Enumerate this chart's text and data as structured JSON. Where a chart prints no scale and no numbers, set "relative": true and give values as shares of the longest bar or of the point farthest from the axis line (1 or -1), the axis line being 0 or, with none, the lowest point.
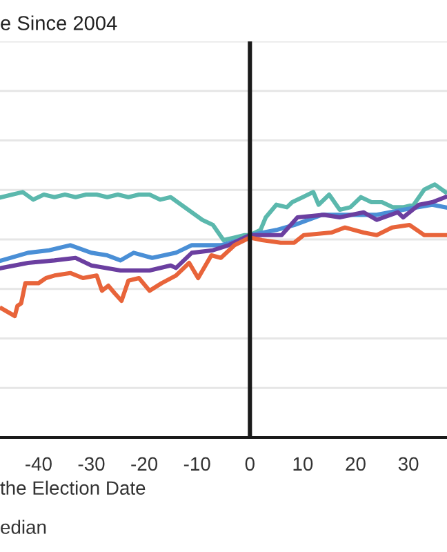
{
  "chart_data": {
    "type": "line",
    "title": "e Since 2004",
    "xlabel": "the Election Date",
    "annotations": [
      "edian"
    ],
    "relative": true,
    "grid": "y",
    "legend": false,
    "marker": "none",
    "line_style": "solid",
    "xlim": [
      -47.3,
      37.3
    ],
    "xticks": [
      -40,
      -30,
      -20,
      -10,
      0,
      10,
      20,
      30
    ],
    "ref_lines": [
      {
        "axis": "x",
        "value": 0,
        "color": "#1a1a1a"
      }
    ],
    "series": [
      {
        "color": "#5bb8ad",
        "x": [
          -47,
          -45,
          -43,
          -41,
          -39,
          -37,
          -35,
          -33,
          -31,
          -29,
          -27,
          -25,
          -23,
          -21,
          -19,
          -17,
          -15,
          -13,
          -11,
          -9,
          -7,
          -5,
          -3,
          -1,
          0,
          2,
          3,
          5,
          7,
          8,
          10,
          12,
          13,
          15,
          17,
          19,
          21,
          23,
          25,
          27,
          29,
          31,
          33,
          35,
          37
        ],
        "values": [
          0.95,
          0.96,
          0.97,
          0.94,
          0.96,
          0.95,
          0.96,
          0.95,
          0.96,
          0.96,
          0.95,
          0.96,
          0.95,
          0.96,
          0.96,
          0.94,
          0.95,
          0.92,
          0.89,
          0.86,
          0.84,
          0.78,
          0.79,
          0.8,
          0.8,
          0.82,
          0.87,
          0.92,
          0.91,
          0.93,
          0.95,
          0.97,
          0.92,
          0.96,
          0.9,
          0.91,
          0.95,
          0.93,
          0.93,
          0.91,
          0.91,
          0.92,
          0.98,
          1.0,
          0.97
        ]
      },
      {
        "color": "#4a8fd6",
        "x": [
          -47,
          -42,
          -38,
          -34,
          -30,
          -27,
          -24.5,
          -22,
          -18.5,
          -14,
          -11,
          -5.5,
          -2,
          0,
          5,
          8.4,
          13.6,
          19,
          24,
          29,
          34.5,
          37
        ],
        "values": [
          0.7,
          0.73,
          0.74,
          0.76,
          0.73,
          0.72,
          0.7,
          0.73,
          0.71,
          0.73,
          0.76,
          0.76,
          0.78,
          0.8,
          0.82,
          0.84,
          0.88,
          0.88,
          0.88,
          0.9,
          0.92,
          0.91
        ]
      },
      {
        "color": "#6b3fa0",
        "x": [
          -47,
          -42,
          -37,
          -33,
          -30,
          -24.5,
          -19,
          -15,
          -14,
          -11,
          -7,
          -4,
          0,
          6,
          9,
          14,
          17,
          21.5,
          24,
          28,
          29,
          32,
          34.5,
          37
        ],
        "values": [
          0.67,
          0.69,
          0.7,
          0.71,
          0.68,
          0.66,
          0.66,
          0.68,
          0.67,
          0.73,
          0.74,
          0.76,
          0.8,
          0.8,
          0.87,
          0.88,
          0.87,
          0.89,
          0.86,
          0.89,
          0.87,
          0.92,
          0.93,
          0.95
        ]
      },
      {
        "color": "#e8643a",
        "x": [
          -47,
          -44.5,
          -44,
          -43.3,
          -42.5,
          -40,
          -38.6,
          -37,
          -34,
          -31.6,
          -29,
          -28,
          -26.8,
          -25.6,
          -24.3,
          -23,
          -21,
          -19,
          -16.7,
          -14,
          -11.5,
          -9.8,
          -7.3,
          -5.5,
          -2.9,
          0,
          2.3,
          5.8,
          8.4,
          10.2,
          15.4,
          18,
          21.5,
          24,
          26.9,
          30.2,
          33,
          37
        ],
        "values": [
          0.51,
          0.48,
          0.52,
          0.53,
          0.61,
          0.61,
          0.63,
          0.64,
          0.65,
          0.63,
          0.64,
          0.58,
          0.6,
          0.57,
          0.54,
          0.62,
          0.63,
          0.58,
          0.61,
          0.64,
          0.69,
          0.63,
          0.72,
          0.71,
          0.76,
          0.79,
          0.78,
          0.77,
          0.77,
          0.8,
          0.81,
          0.83,
          0.81,
          0.8,
          0.83,
          0.84,
          0.8,
          0.8
        ]
      }
    ]
  }
}
